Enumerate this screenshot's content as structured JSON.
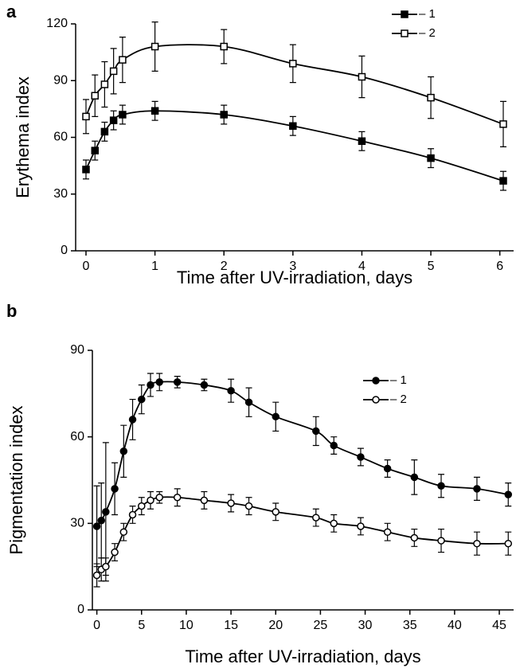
{
  "chart_data": [
    {
      "type": "line",
      "panel": "a",
      "x_label": "Time after UV-irradiation, days",
      "y_label": "Erythema index",
      "xlim": [
        -0.15,
        6.2
      ],
      "ylim": [
        0,
        120
      ],
      "xticks": [
        0,
        1,
        2,
        3,
        4,
        5,
        6
      ],
      "yticks": [
        0,
        30,
        60,
        90,
        120
      ],
      "series": [
        {
          "name": "– 1",
          "color": "#000000",
          "marker": "square",
          "filled": true,
          "x": [
            0,
            0.13,
            0.27,
            0.4,
            0.53,
            1,
            2,
            3,
            4,
            5,
            6.05
          ],
          "values": [
            43,
            53,
            63,
            69,
            72,
            74,
            72,
            66,
            58,
            49,
            37
          ],
          "errors": [
            5,
            5,
            5,
            5,
            5,
            5,
            5,
            5,
            5,
            5,
            5
          ]
        },
        {
          "name": "– 2",
          "color": "#000000",
          "marker": "square",
          "filled": false,
          "x": [
            0,
            0.13,
            0.27,
            0.4,
            0.53,
            1,
            2,
            3,
            4,
            5,
            6.05
          ],
          "values": [
            71,
            82,
            88,
            95,
            101,
            108,
            108,
            99,
            92,
            81,
            67
          ],
          "errors": [
            9,
            11,
            12,
            12,
            12,
            13,
            9,
            10,
            11,
            11,
            12
          ]
        }
      ]
    },
    {
      "type": "line",
      "panel": "b",
      "x_label": "Time after UV-irradiation, days",
      "y_label": "Pigmentation index",
      "xlim": [
        -0.5,
        46.6
      ],
      "ylim": [
        0,
        90
      ],
      "xticks": [
        0,
        5,
        10,
        15,
        20,
        25,
        30,
        35,
        40,
        45
      ],
      "yticks": [
        0,
        30,
        60,
        90
      ],
      "series": [
        {
          "name": "– 1",
          "color": "#000000",
          "marker": "circle",
          "filled": true,
          "x": [
            0,
            0.5,
            1,
            2,
            3,
            4,
            5,
            6,
            7,
            9,
            12,
            15,
            17,
            20,
            24.5,
            26.5,
            29.5,
            32.5,
            35.5,
            38.5,
            42.5,
            46
          ],
          "values": [
            29,
            31,
            34,
            42,
            55,
            66,
            73,
            78,
            79,
            79,
            78,
            76,
            72,
            67,
            62,
            57,
            53,
            49,
            46,
            43,
            42,
            40
          ],
          "errors": [
            14,
            13,
            24,
            9,
            9,
            7,
            5,
            4,
            3,
            2,
            2,
            4,
            5,
            5,
            5,
            3,
            3,
            3,
            6,
            4,
            4,
            4
          ]
        },
        {
          "name": "– 2",
          "color": "#000000",
          "marker": "circle",
          "filled": false,
          "x": [
            0,
            0.5,
            1,
            2,
            3,
            4,
            5,
            6,
            7,
            9,
            12,
            15,
            17,
            20,
            24.5,
            26.5,
            29.5,
            32.5,
            35.5,
            38.5,
            42.5,
            46
          ],
          "values": [
            12,
            14,
            15,
            20,
            27,
            33,
            36,
            38,
            39,
            39,
            38,
            37,
            36,
            34,
            32,
            30,
            29,
            27,
            25,
            24,
            23,
            23
          ],
          "errors": [
            4,
            4,
            3,
            3,
            3,
            3,
            3,
            3,
            2,
            3,
            3,
            3,
            3,
            3,
            3,
            3,
            3,
            3,
            3,
            4,
            4,
            4
          ]
        }
      ]
    }
  ]
}
